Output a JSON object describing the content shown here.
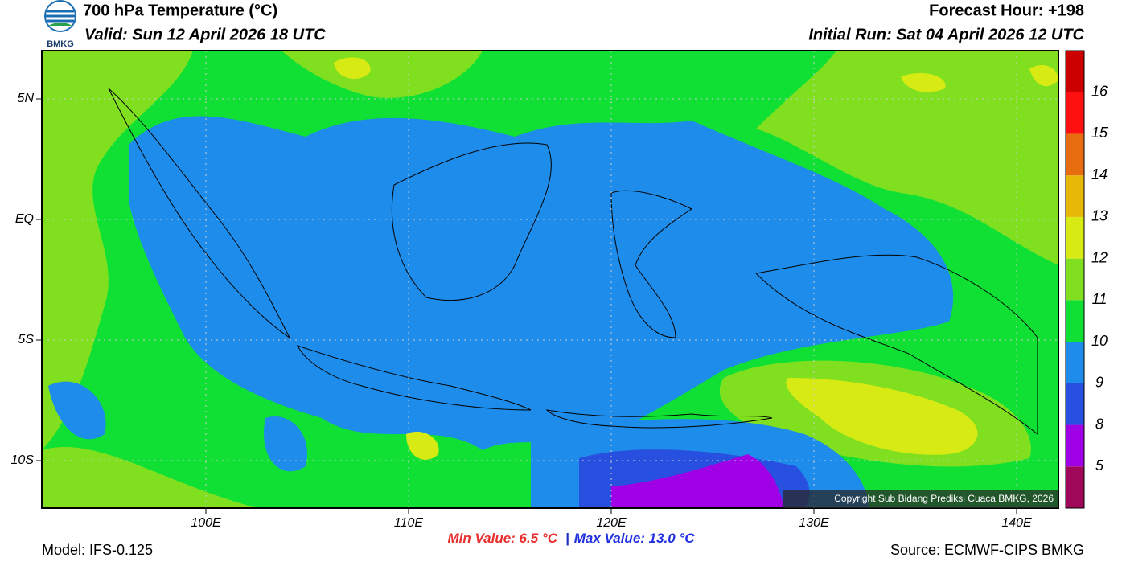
{
  "header": {
    "logo_text": "BMKG",
    "title": "700 hPa Temperature (°C)",
    "valid": "Valid: Sun 12 April 2026 18 UTC",
    "forecast_hour": "Forecast Hour: +198",
    "initial_run": "Initial Run: Sat 04 April 2026 12 UTC"
  },
  "map": {
    "lat_labels": [
      "5N",
      "EQ",
      "5S",
      "10S"
    ],
    "lon_labels": [
      "100E",
      "110E",
      "120E",
      "130E",
      "140E"
    ],
    "copyright": "Copyright Sub Bidang Prediksi Cuaca BMKG, 2026"
  },
  "colorbar": {
    "colors": [
      "#a0085a",
      "#a000e6",
      "#2850e0",
      "#1e8cea",
      "#10e034",
      "#80e020",
      "#d8ea14",
      "#e8b808",
      "#e86c10",
      "#ff1010",
      "#cc0000"
    ],
    "labels": [
      5,
      8,
      9,
      10,
      11,
      12,
      13,
      14,
      15,
      16
    ]
  },
  "footer": {
    "model": "Model: IFS-0.125",
    "min_value": "Min Value: 6.5 °C",
    "separator": "|",
    "max_value": "Max Value: 13.0 °C",
    "source": "Source: ECMWF-CIPS BMKG"
  }
}
